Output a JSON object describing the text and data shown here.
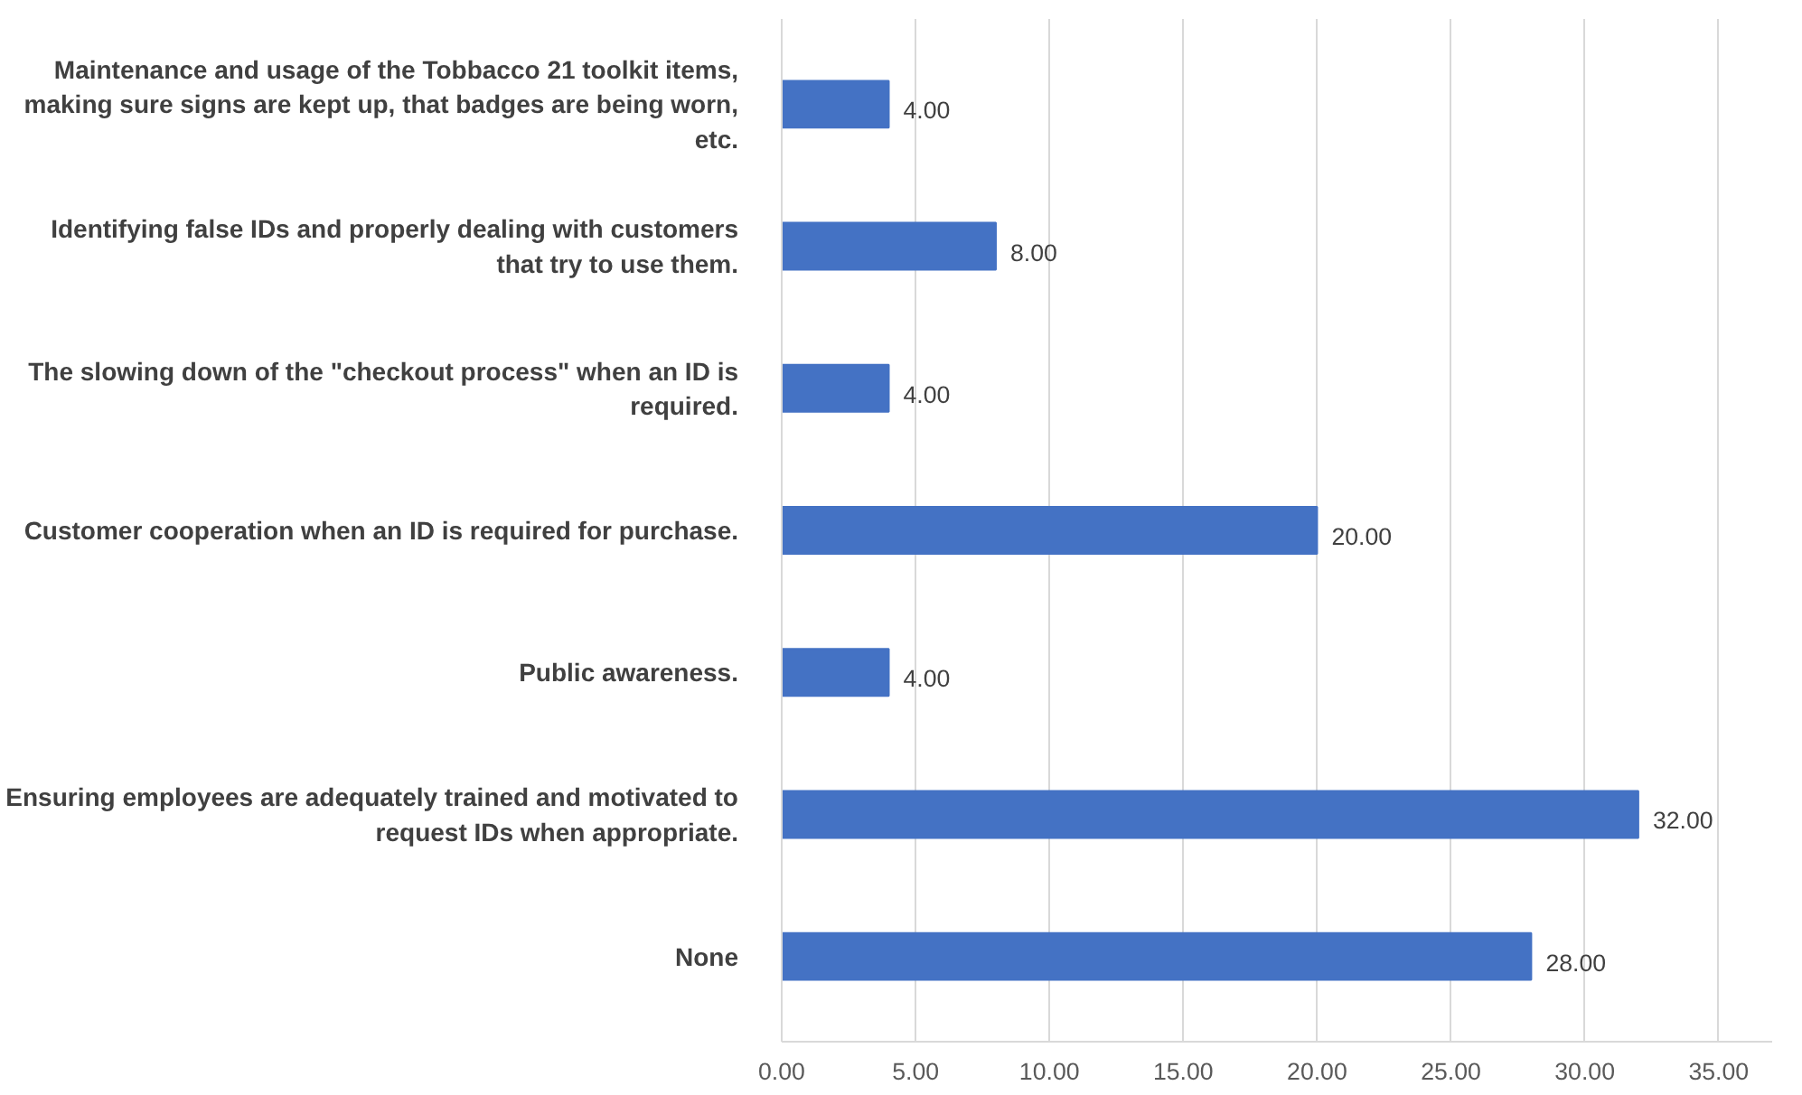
{
  "chart_data": {
    "type": "bar",
    "orientation": "horizontal",
    "categories": [
      "Maintenance and usage of the Tobbacco 21 toolkit items, making sure signs are kept up, that badges are being worn, etc.",
      "Identifying false IDs and properly dealing with customers that try to use them.",
      "The slowing down of the \"checkout process\" when an ID is required.",
      "Customer cooperation when an ID is required for purchase.",
      "Public awareness.",
      "Ensuring employees are adequately trained and motivated to request IDs when appropriate.",
      "None"
    ],
    "values": [
      4,
      8,
      4,
      20,
      4,
      32,
      28
    ],
    "value_labels": [
      "4.00",
      "8.00",
      "4.00",
      "20.00",
      "4.00",
      "32.00",
      "28.00"
    ],
    "color": "#4472c4",
    "xlim": [
      0,
      37
    ],
    "xticks": [
      {
        "value": 0,
        "label": "0.00"
      },
      {
        "value": 5,
        "label": "5.00"
      },
      {
        "value": 10,
        "label": "10.00"
      },
      {
        "value": 15,
        "label": "15.00"
      },
      {
        "value": 20,
        "label": "20.00"
      },
      {
        "value": 25,
        "label": "25.00"
      },
      {
        "value": 30,
        "label": "30.00"
      },
      {
        "value": 35,
        "label": "35.00"
      }
    ],
    "grid": "x"
  }
}
